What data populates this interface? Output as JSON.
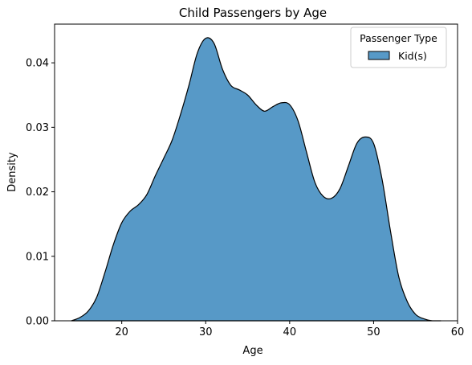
{
  "chart_data": {
    "type": "area",
    "title": "Child Passengers by Age",
    "xlabel": "Age",
    "ylabel": "Density",
    "xlim": [
      12,
      60
    ],
    "ylim": [
      0,
      0.046
    ],
    "xticks": [
      20,
      30,
      40,
      50,
      60
    ],
    "yticks": [
      0.0,
      0.01,
      0.02,
      0.03,
      0.04
    ],
    "xtick_labels": [
      "20",
      "30",
      "40",
      "50",
      "60"
    ],
    "ytick_labels": [
      "0.00",
      "0.01",
      "0.02",
      "0.03",
      "0.04"
    ],
    "grid": false,
    "legend": {
      "title": "Passenger Type",
      "placement": "top-right",
      "entries": [
        "Kid(s)"
      ]
    },
    "fill_color": "#5799c7",
    "edge_color": "#000000",
    "series": [
      {
        "name": "Kid(s)",
        "x": [
          14,
          15,
          16,
          17,
          18,
          19,
          20,
          21,
          22,
          23,
          24,
          25,
          26,
          27,
          28,
          29,
          30,
          31,
          32,
          33,
          34,
          35,
          36,
          37,
          38,
          39,
          40,
          41,
          42,
          43,
          44,
          45,
          46,
          47,
          48,
          49,
          50,
          51,
          52,
          53,
          54,
          55,
          56,
          57,
          58
        ],
        "y": [
          0.0,
          0.0005,
          0.0015,
          0.0036,
          0.0075,
          0.0118,
          0.0152,
          0.017,
          0.018,
          0.0196,
          0.0225,
          0.0252,
          0.028,
          0.032,
          0.0365,
          0.0415,
          0.0438,
          0.043,
          0.039,
          0.0365,
          0.0358,
          0.035,
          0.0335,
          0.0325,
          0.0332,
          0.0338,
          0.0335,
          0.031,
          0.0262,
          0.0215,
          0.0193,
          0.019,
          0.0205,
          0.024,
          0.0275,
          0.0285,
          0.0275,
          0.022,
          0.014,
          0.0068,
          0.003,
          0.001,
          0.0003,
          0.0,
          0.0
        ]
      }
    ]
  }
}
